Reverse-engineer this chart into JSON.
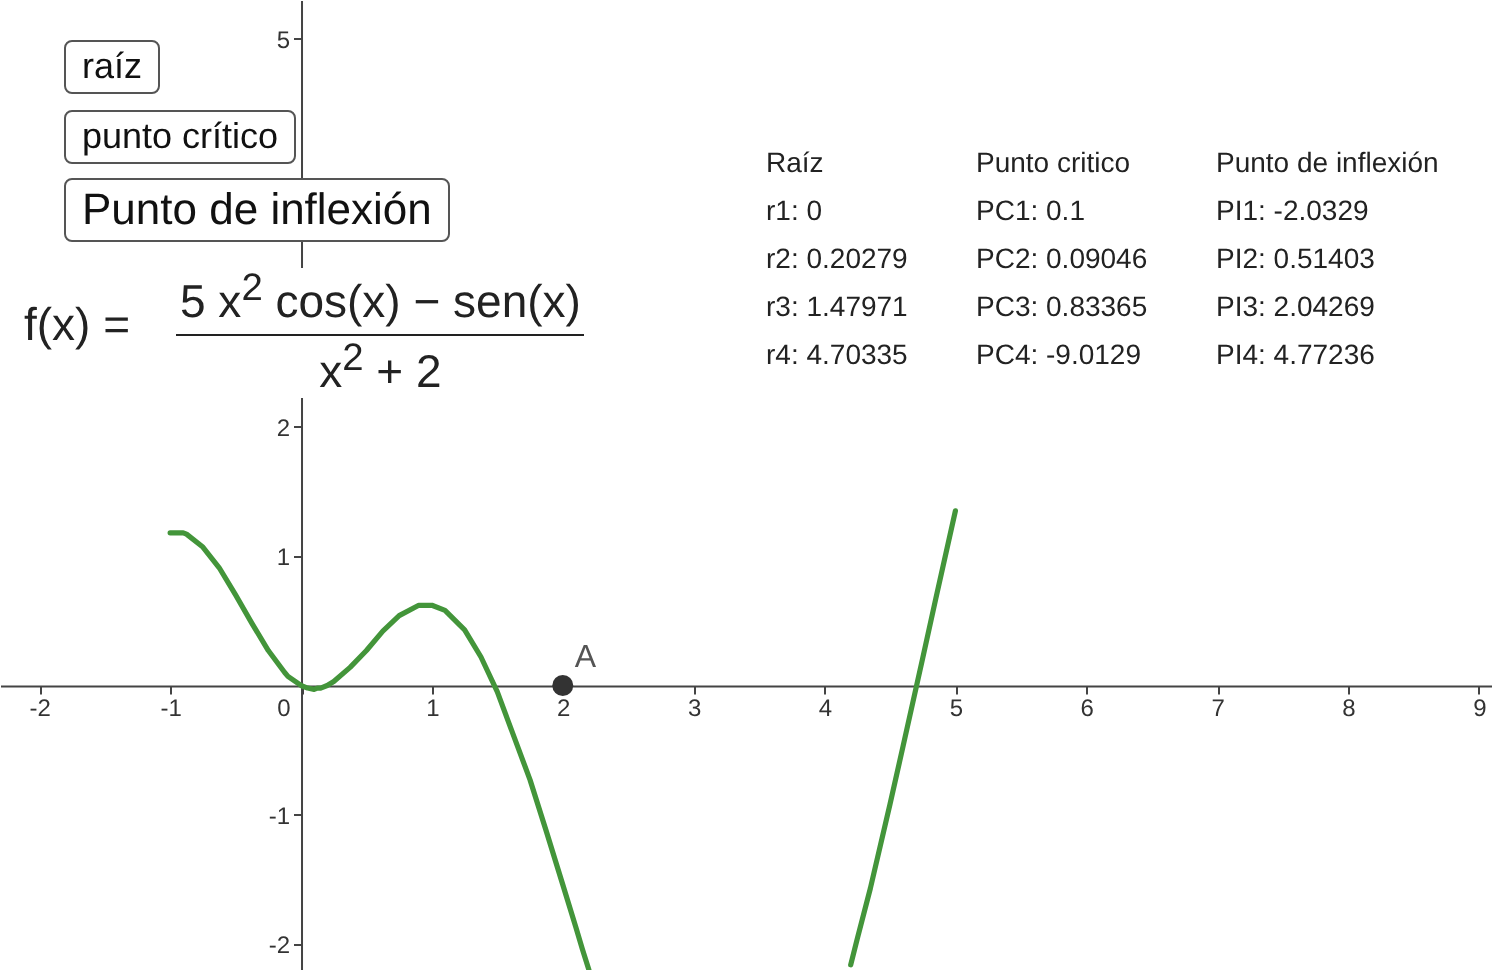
{
  "chart_data": {
    "type": "line",
    "xlim": [
      -2.3,
      9.1
    ],
    "ylim": [
      -2.2,
      5.3
    ],
    "xticks": [
      -2,
      -1,
      0,
      1,
      2,
      3,
      4,
      5,
      6,
      7,
      8,
      9
    ],
    "yticks": [
      -2,
      -1,
      1,
      2,
      5
    ],
    "grid": false,
    "series": [
      {
        "color": "#43953a",
        "x": [
          -1,
          -0.9,
          -0.875,
          -0.75,
          -0.625,
          -0.5,
          -0.375,
          -0.25,
          -0.125,
          -0.1,
          0,
          0.05,
          0.1,
          0.125,
          0.15,
          0.2,
          0.25,
          0.375,
          0.5,
          0.625,
          0.75,
          0.9,
          1,
          1.1,
          1.25,
          1.375,
          1.5,
          1.75,
          1.875,
          2,
          2.1,
          2.15,
          2.2
        ],
        "values": [
          1.18,
          1.18,
          1.17,
          1.07,
          0.91,
          0.7,
          0.48,
          0.27,
          0.1,
          0.07,
          0,
          -0.02,
          -0.03,
          -0.02,
          -0.02,
          0,
          0.03,
          0.14,
          0.27,
          0.42,
          0.54,
          0.62,
          0.62,
          0.58,
          0.43,
          0.22,
          -0.05,
          -0.73,
          -1.13,
          -1.54,
          -1.87,
          -2.04,
          -2.2
        ]
      },
      {
        "color": "#43953a",
        "x": [
          4.2,
          4.25,
          4.35,
          4.5,
          4.6,
          4.75,
          4.85,
          5
        ],
        "values": [
          -2.16,
          -1.96,
          -1.57,
          -0.92,
          -0.47,
          0.21,
          0.67,
          1.35
        ]
      },
      {
        "type": "scatter",
        "name": "A",
        "color": "#333333",
        "marker": "circle",
        "x": [
          2
        ],
        "values": [
          0
        ]
      }
    ],
    "annotations": [
      "raíz",
      "punto crítico",
      "Punto de inflexión",
      "f(x) =",
      "5 x$^{2}$  cos(x) − sen(x)",
      "x$^{2}$ + 2",
      "Raíz",
      "Punto critico",
      "Punto de inflexión",
      "r1: 0",
      "r2: 0.20279",
      "r3: 1.47971",
      "r4: 4.70335",
      "PC1: 0.1",
      "PC2: 0.09046",
      "PC3: 0.83365",
      "PC4: -9.0129",
      "PI1: -2.0329",
      "PI2: 0.51403",
      "PI3: 2.04269",
      "PI4: 4.77236"
    ]
  }
}
